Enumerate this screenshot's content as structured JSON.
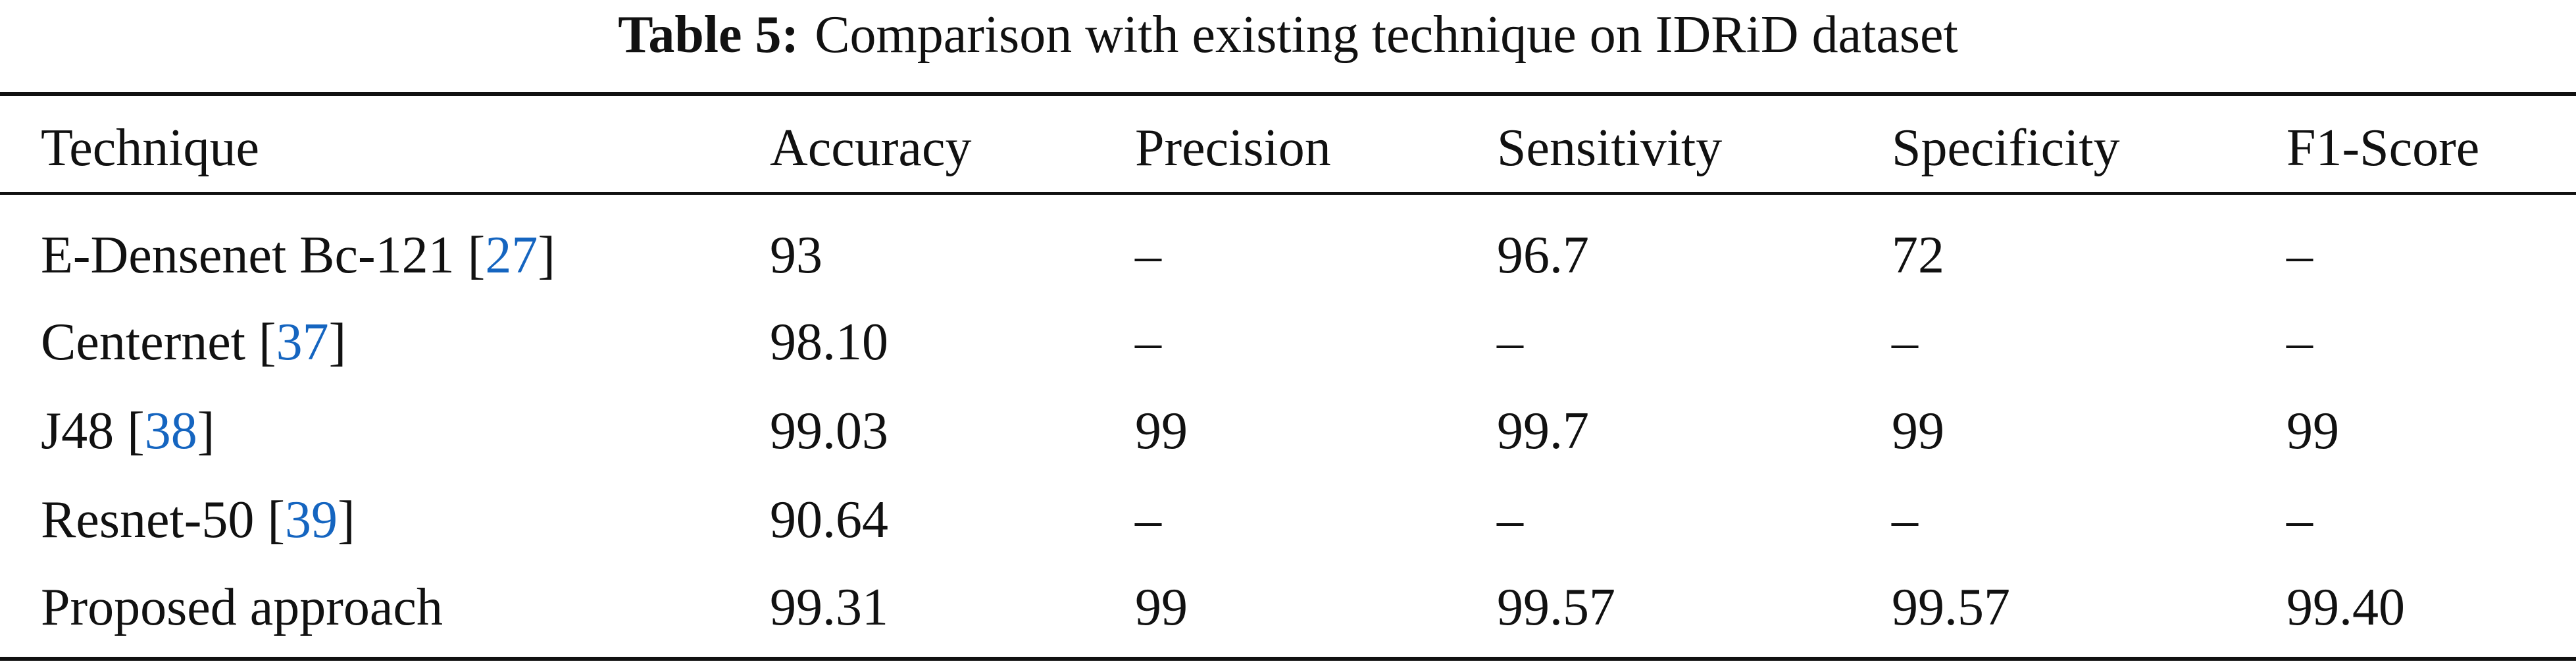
{
  "caption": {
    "label": "Table 5:",
    "text": "Comparison with existing technique on IDRiD dataset"
  },
  "table": {
    "headers": [
      "Technique",
      "Accuracy",
      "Precision",
      "Sensitivity",
      "Specificity",
      "F1-Score"
    ],
    "rows": [
      {
        "technique": "E-Densenet Bc-121",
        "ref": "27",
        "cells": [
          "93",
          "–",
          "96.7",
          "72",
          "–"
        ]
      },
      {
        "technique": "Centernet",
        "ref": "37",
        "cells": [
          "98.10",
          "–",
          "–",
          "–",
          "–"
        ]
      },
      {
        "technique": "J48",
        "ref": "38",
        "cells": [
          "99.03",
          "99",
          "99.7",
          "99",
          "99"
        ]
      },
      {
        "technique": "Resnet-50",
        "ref": "39",
        "cells": [
          "90.64",
          "–",
          "–",
          "–",
          "–"
        ]
      },
      {
        "technique": "Proposed approach",
        "ref": null,
        "cells": [
          "99.31",
          "99",
          "99.57",
          "99.57",
          "99.40"
        ]
      }
    ]
  }
}
